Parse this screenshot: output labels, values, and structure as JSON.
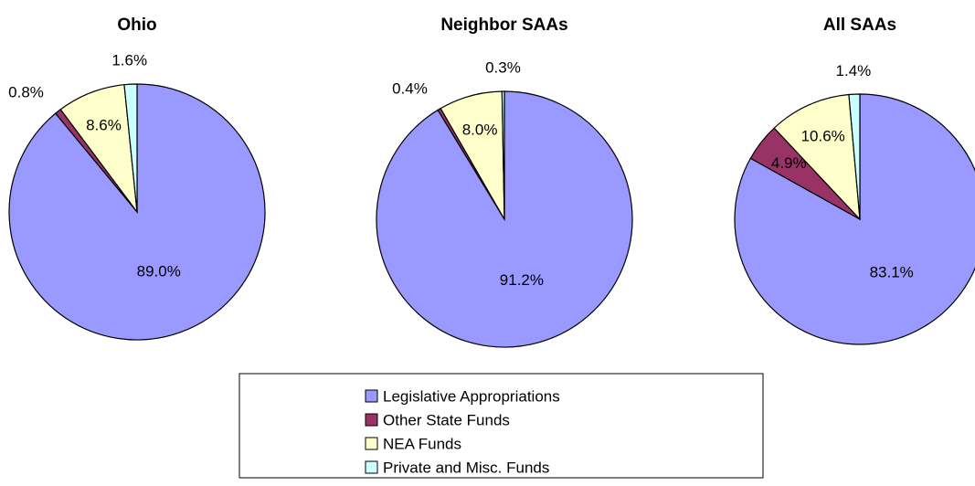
{
  "legend": {
    "labels": [
      "Legislative Appropriations",
      "Other State Funds",
      "NEA Funds",
      "Private and Misc. Funds"
    ],
    "colors": [
      "#9999ff",
      "#993366",
      "#ffffcc",
      "#ccffff"
    ]
  },
  "chart_data": [
    {
      "type": "pie",
      "title": "Ohio",
      "values": [
        89.0,
        0.8,
        8.6,
        1.6
      ],
      "value_labels": [
        "89.0%",
        "0.8%",
        "8.6%",
        "1.6%"
      ]
    },
    {
      "type": "pie",
      "title": "Neighbor SAAs",
      "values": [
        91.2,
        0.4,
        8.0,
        0.3
      ],
      "value_labels": [
        "91.2%",
        "0.4%",
        "8.0%",
        "0.3%"
      ]
    },
    {
      "type": "pie",
      "title": "All SAAs",
      "values": [
        83.1,
        4.9,
        10.6,
        1.4
      ],
      "value_labels": [
        "83.1%",
        "4.9%",
        "10.6%",
        "1.4%"
      ]
    }
  ]
}
